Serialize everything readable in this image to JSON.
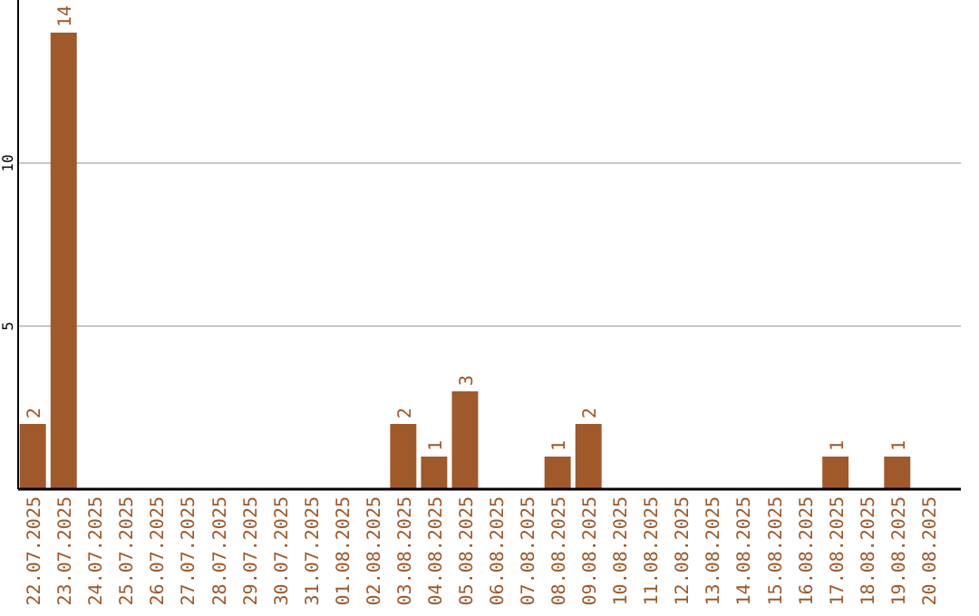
{
  "chart_data": {
    "type": "bar",
    "categories": [
      "22.07.2025",
      "23.07.2025",
      "24.07.2025",
      "25.07.2025",
      "26.07.2025",
      "27.07.2025",
      "28.07.2025",
      "29.07.2025",
      "30.07.2025",
      "31.07.2025",
      "01.08.2025",
      "02.08.2025",
      "03.08.2025",
      "04.08.2025",
      "05.08.2025",
      "06.08.2025",
      "07.08.2025",
      "08.08.2025",
      "09.08.2025",
      "10.08.2025",
      "11.08.2025",
      "12.08.2025",
      "13.08.2025",
      "14.08.2025",
      "15.08.2025",
      "16.08.2025",
      "17.08.2025",
      "18.08.2025",
      "19.08.2025",
      "20.08.2025"
    ],
    "values": [
      2,
      14,
      0,
      0,
      0,
      0,
      0,
      0,
      0,
      0,
      0,
      0,
      2,
      1,
      3,
      0,
      0,
      1,
      2,
      0,
      0,
      0,
      0,
      0,
      0,
      0,
      1,
      0,
      1,
      0
    ],
    "value_labels": [
      "2",
      "14",
      null,
      null,
      null,
      null,
      null,
      null,
      null,
      null,
      null,
      null,
      "2",
      "1",
      "3",
      null,
      null,
      "1",
      "2",
      null,
      null,
      null,
      null,
      null,
      null,
      null,
      "1",
      null,
      "1",
      null
    ],
    "color": "#a0592a",
    "ylim": [
      0,
      15
    ],
    "yticks": [
      5,
      10
    ],
    "grid": "y"
  }
}
